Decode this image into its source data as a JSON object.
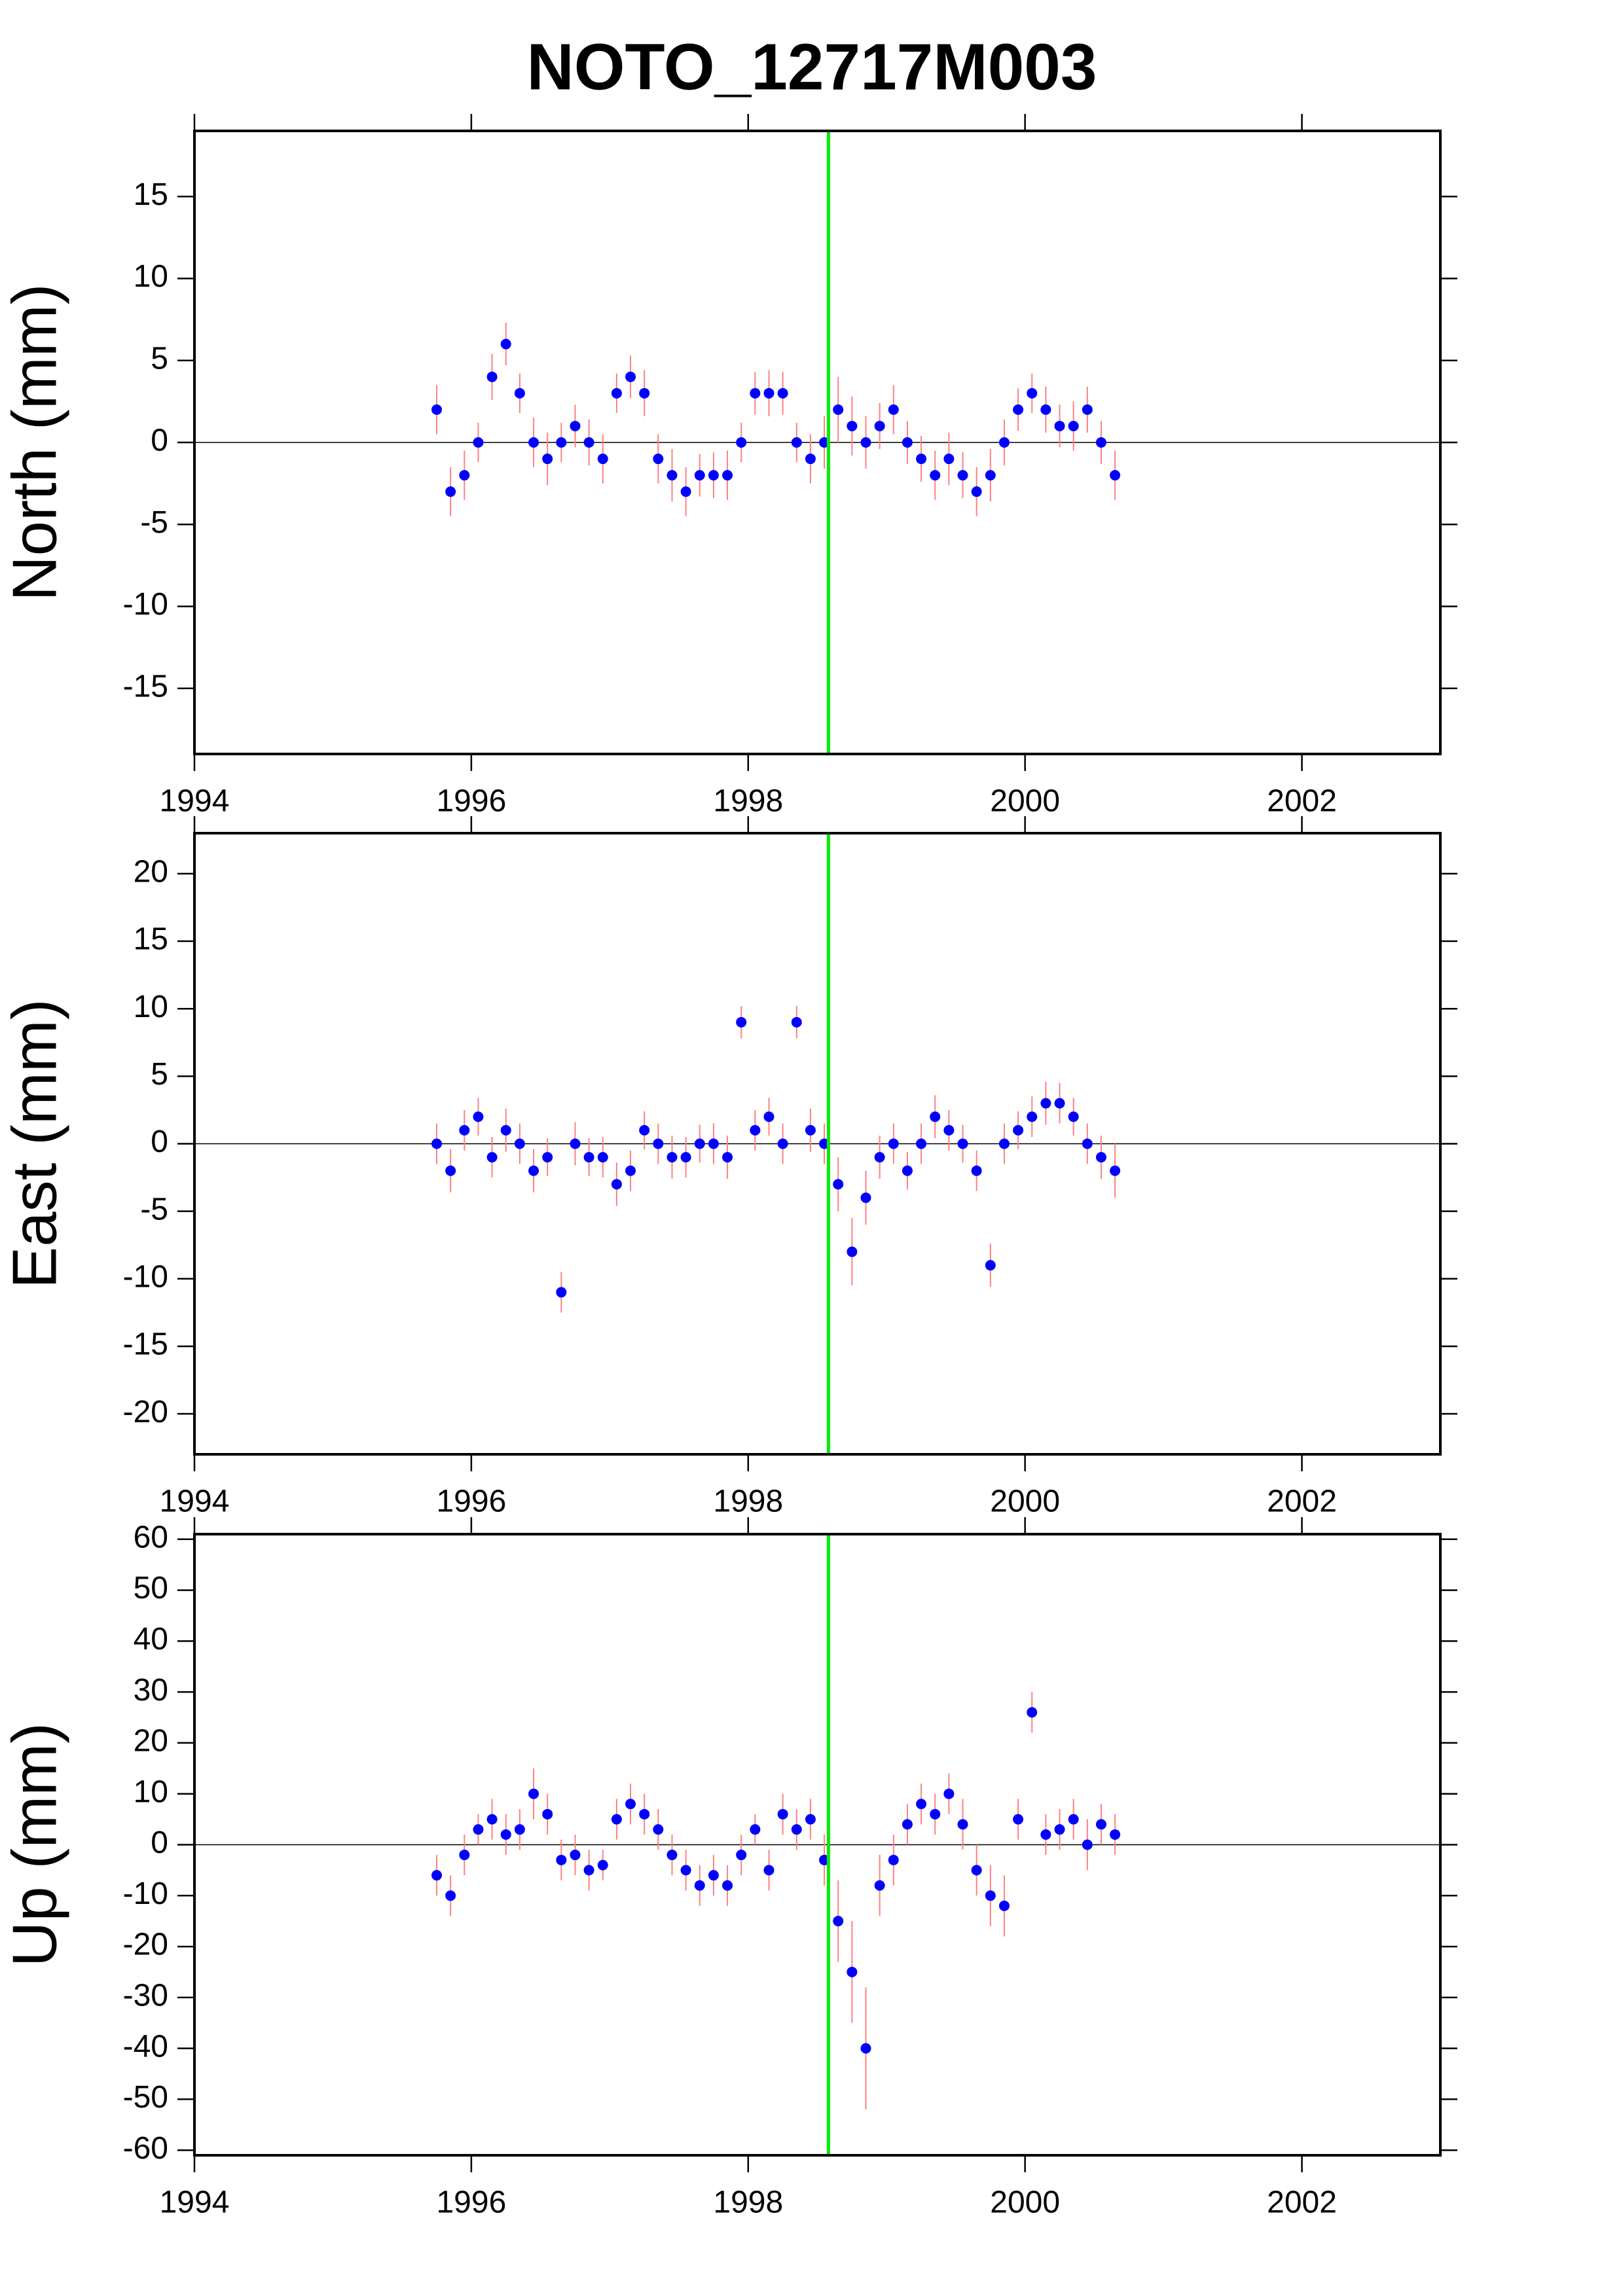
{
  "title": "NOTO_12717M003",
  "chart_data": [
    {
      "type": "scatter",
      "ylabel": "North (mm)",
      "x": [
        1995.75,
        1995.85,
        1995.95,
        1996.05,
        1996.15,
        1996.25,
        1996.35,
        1996.45,
        1996.55,
        1996.65,
        1996.75,
        1996.85,
        1996.95,
        1997.05,
        1997.15,
        1997.25,
        1997.35,
        1997.45,
        1997.55,
        1997.65,
        1997.75,
        1997.85,
        1997.95,
        1998.05,
        1998.15,
        1998.25,
        1998.35,
        1998.45,
        1998.55,
        1998.65,
        1998.75,
        1998.85,
        1998.95,
        1999.05,
        1999.15,
        1999.25,
        1999.35,
        1999.45,
        1999.55,
        1999.65,
        1999.75,
        1999.85,
        1999.95,
        2000.05,
        2000.15,
        2000.25,
        2000.35,
        2000.45,
        2000.55,
        2000.65
      ],
      "values": [
        2,
        -3,
        -2,
        0,
        4,
        6,
        3,
        0,
        -1,
        0,
        1,
        0,
        -1,
        3,
        4,
        3,
        -1,
        -2,
        -3,
        -2,
        -2,
        -2,
        0,
        3,
        3,
        3,
        0,
        -1,
        0,
        2,
        1,
        0,
        1,
        2,
        0,
        -1,
        -2,
        -1,
        -2,
        -3,
        -2,
        0,
        2,
        3,
        2,
        1,
        1,
        2,
        0,
        -2
      ],
      "errors": [
        1.5,
        1.5,
        1.5,
        1.2,
        1.4,
        1.3,
        1.2,
        1.5,
        1.6,
        1.2,
        1.3,
        1.4,
        1.5,
        1.2,
        1.3,
        1.4,
        1.5,
        1.6,
        1.5,
        1.3,
        1.4,
        1.5,
        1.2,
        1.3,
        1.4,
        1.3,
        1.2,
        1.5,
        1.6,
        2,
        1.8,
        1.6,
        1.4,
        1.5,
        1.3,
        1.4,
        1.5,
        1.6,
        1.4,
        1.5,
        1.6,
        1.4,
        1.3,
        1.2,
        1.4,
        1.3,
        1.5,
        1.4,
        1.3,
        1.5
      ],
      "xlim": [
        1994,
        2003
      ],
      "xticks": [
        1994,
        1996,
        1998,
        2000,
        2002
      ],
      "ylim": [
        -19,
        19
      ],
      "yticks": [
        -15,
        -10,
        -5,
        0,
        5,
        10,
        15
      ],
      "event_x": 1998.58,
      "color": "#0000ff",
      "error_color": "#ff8080",
      "event_color": "#00ee00"
    },
    {
      "type": "scatter",
      "ylabel": "East (mm)",
      "x": [
        1995.75,
        1995.85,
        1995.95,
        1996.05,
        1996.15,
        1996.25,
        1996.35,
        1996.45,
        1996.55,
        1996.65,
        1996.75,
        1996.85,
        1996.95,
        1997.05,
        1997.15,
        1997.25,
        1997.35,
        1997.45,
        1997.55,
        1997.65,
        1997.75,
        1997.85,
        1997.95,
        1998.05,
        1998.15,
        1998.25,
        1998.35,
        1998.45,
        1998.55,
        1998.65,
        1998.75,
        1998.85,
        1998.95,
        1999.05,
        1999.15,
        1999.25,
        1999.35,
        1999.45,
        1999.55,
        1999.65,
        1999.75,
        1999.85,
        1999.95,
        2000.05,
        2000.15,
        2000.25,
        2000.35,
        2000.45,
        2000.55,
        2000.65
      ],
      "values": [
        0,
        -2,
        1,
        2,
        -1,
        1,
        0,
        -2,
        -1,
        -11,
        0,
        -1,
        -1,
        -3,
        -2,
        1,
        0,
        -1,
        -1,
        0,
        0,
        -1,
        9,
        1,
        2,
        0,
        9,
        1,
        0,
        -3,
        -8,
        -4,
        -1,
        0,
        -2,
        0,
        2,
        1,
        0,
        -2,
        -9,
        0,
        1,
        2,
        3,
        3,
        2,
        0,
        -1,
        -2
      ],
      "errors": [
        1.5,
        1.6,
        1.5,
        1.4,
        1.5,
        1.6,
        1.5,
        1.6,
        1.4,
        1.5,
        1.6,
        1.4,
        1.5,
        1.6,
        1.5,
        1.4,
        1.5,
        1.6,
        1.5,
        1.4,
        1.5,
        1.6,
        1.2,
        1.5,
        1.4,
        1.5,
        1.2,
        1.6,
        1.5,
        2,
        2.5,
        2,
        1.6,
        1.5,
        1.4,
        1.5,
        1.6,
        1.5,
        1.4,
        1.5,
        1.6,
        1.5,
        1.4,
        1.5,
        1.6,
        1.5,
        1.4,
        1.5,
        1.6,
        2
      ],
      "xlim": [
        1994,
        2003
      ],
      "xticks": [
        1994,
        1996,
        1998,
        2000,
        2002
      ],
      "ylim": [
        -23,
        23
      ],
      "yticks": [
        -20,
        -15,
        -10,
        -5,
        0,
        5,
        10,
        15,
        20
      ],
      "event_x": 1998.58,
      "color": "#0000ff",
      "error_color": "#ff8080",
      "event_color": "#00ee00"
    },
    {
      "type": "scatter",
      "ylabel": "Up (mm)",
      "x": [
        1995.75,
        1995.85,
        1995.95,
        1996.05,
        1996.15,
        1996.25,
        1996.35,
        1996.45,
        1996.55,
        1996.65,
        1996.75,
        1996.85,
        1996.95,
        1997.05,
        1997.15,
        1997.25,
        1997.35,
        1997.45,
        1997.55,
        1997.65,
        1997.75,
        1997.85,
        1997.95,
        1998.05,
        1998.15,
        1998.25,
        1998.35,
        1998.45,
        1998.55,
        1998.65,
        1998.75,
        1998.85,
        1998.95,
        1999.05,
        1999.15,
        1999.25,
        1999.35,
        1999.45,
        1999.55,
        1999.65,
        1999.75,
        1999.85,
        1999.95,
        2000.05,
        2000.15,
        2000.25,
        2000.35,
        2000.45,
        2000.55,
        2000.65
      ],
      "values": [
        -6,
        -10,
        -2,
        3,
        5,
        2,
        3,
        10,
        6,
        -3,
        -2,
        -5,
        -4,
        5,
        8,
        6,
        3,
        -2,
        -5,
        -8,
        -6,
        -8,
        -2,
        3,
        -5,
        6,
        3,
        5,
        -3,
        -15,
        -25,
        -40,
        -8,
        -3,
        4,
        8,
        6,
        10,
        4,
        -5,
        -10,
        -12,
        5,
        26,
        2,
        3,
        5,
        0,
        4,
        2
      ],
      "errors": [
        4,
        4,
        4,
        3,
        4,
        4,
        4,
        5,
        4,
        4,
        4,
        4,
        3,
        4,
        4,
        4,
        4,
        4,
        4,
        4,
        4,
        4,
        4,
        3,
        4,
        4,
        4,
        4,
        5,
        8,
        10,
        12,
        6,
        5,
        4,
        4,
        4,
        4,
        5,
        5,
        6,
        6,
        4,
        4,
        4,
        4,
        4,
        5,
        4,
        4
      ],
      "xlim": [
        1994,
        2003
      ],
      "xticks": [
        1994,
        1996,
        1998,
        2000,
        2002
      ],
      "ylim": [
        -61,
        61
      ],
      "yticks": [
        -60,
        -50,
        -40,
        -30,
        -20,
        -10,
        0,
        10,
        20,
        30,
        40,
        50,
        60
      ],
      "event_x": 1998.58,
      "color": "#0000ff",
      "error_color": "#ff8080",
      "event_color": "#00ee00"
    }
  ]
}
